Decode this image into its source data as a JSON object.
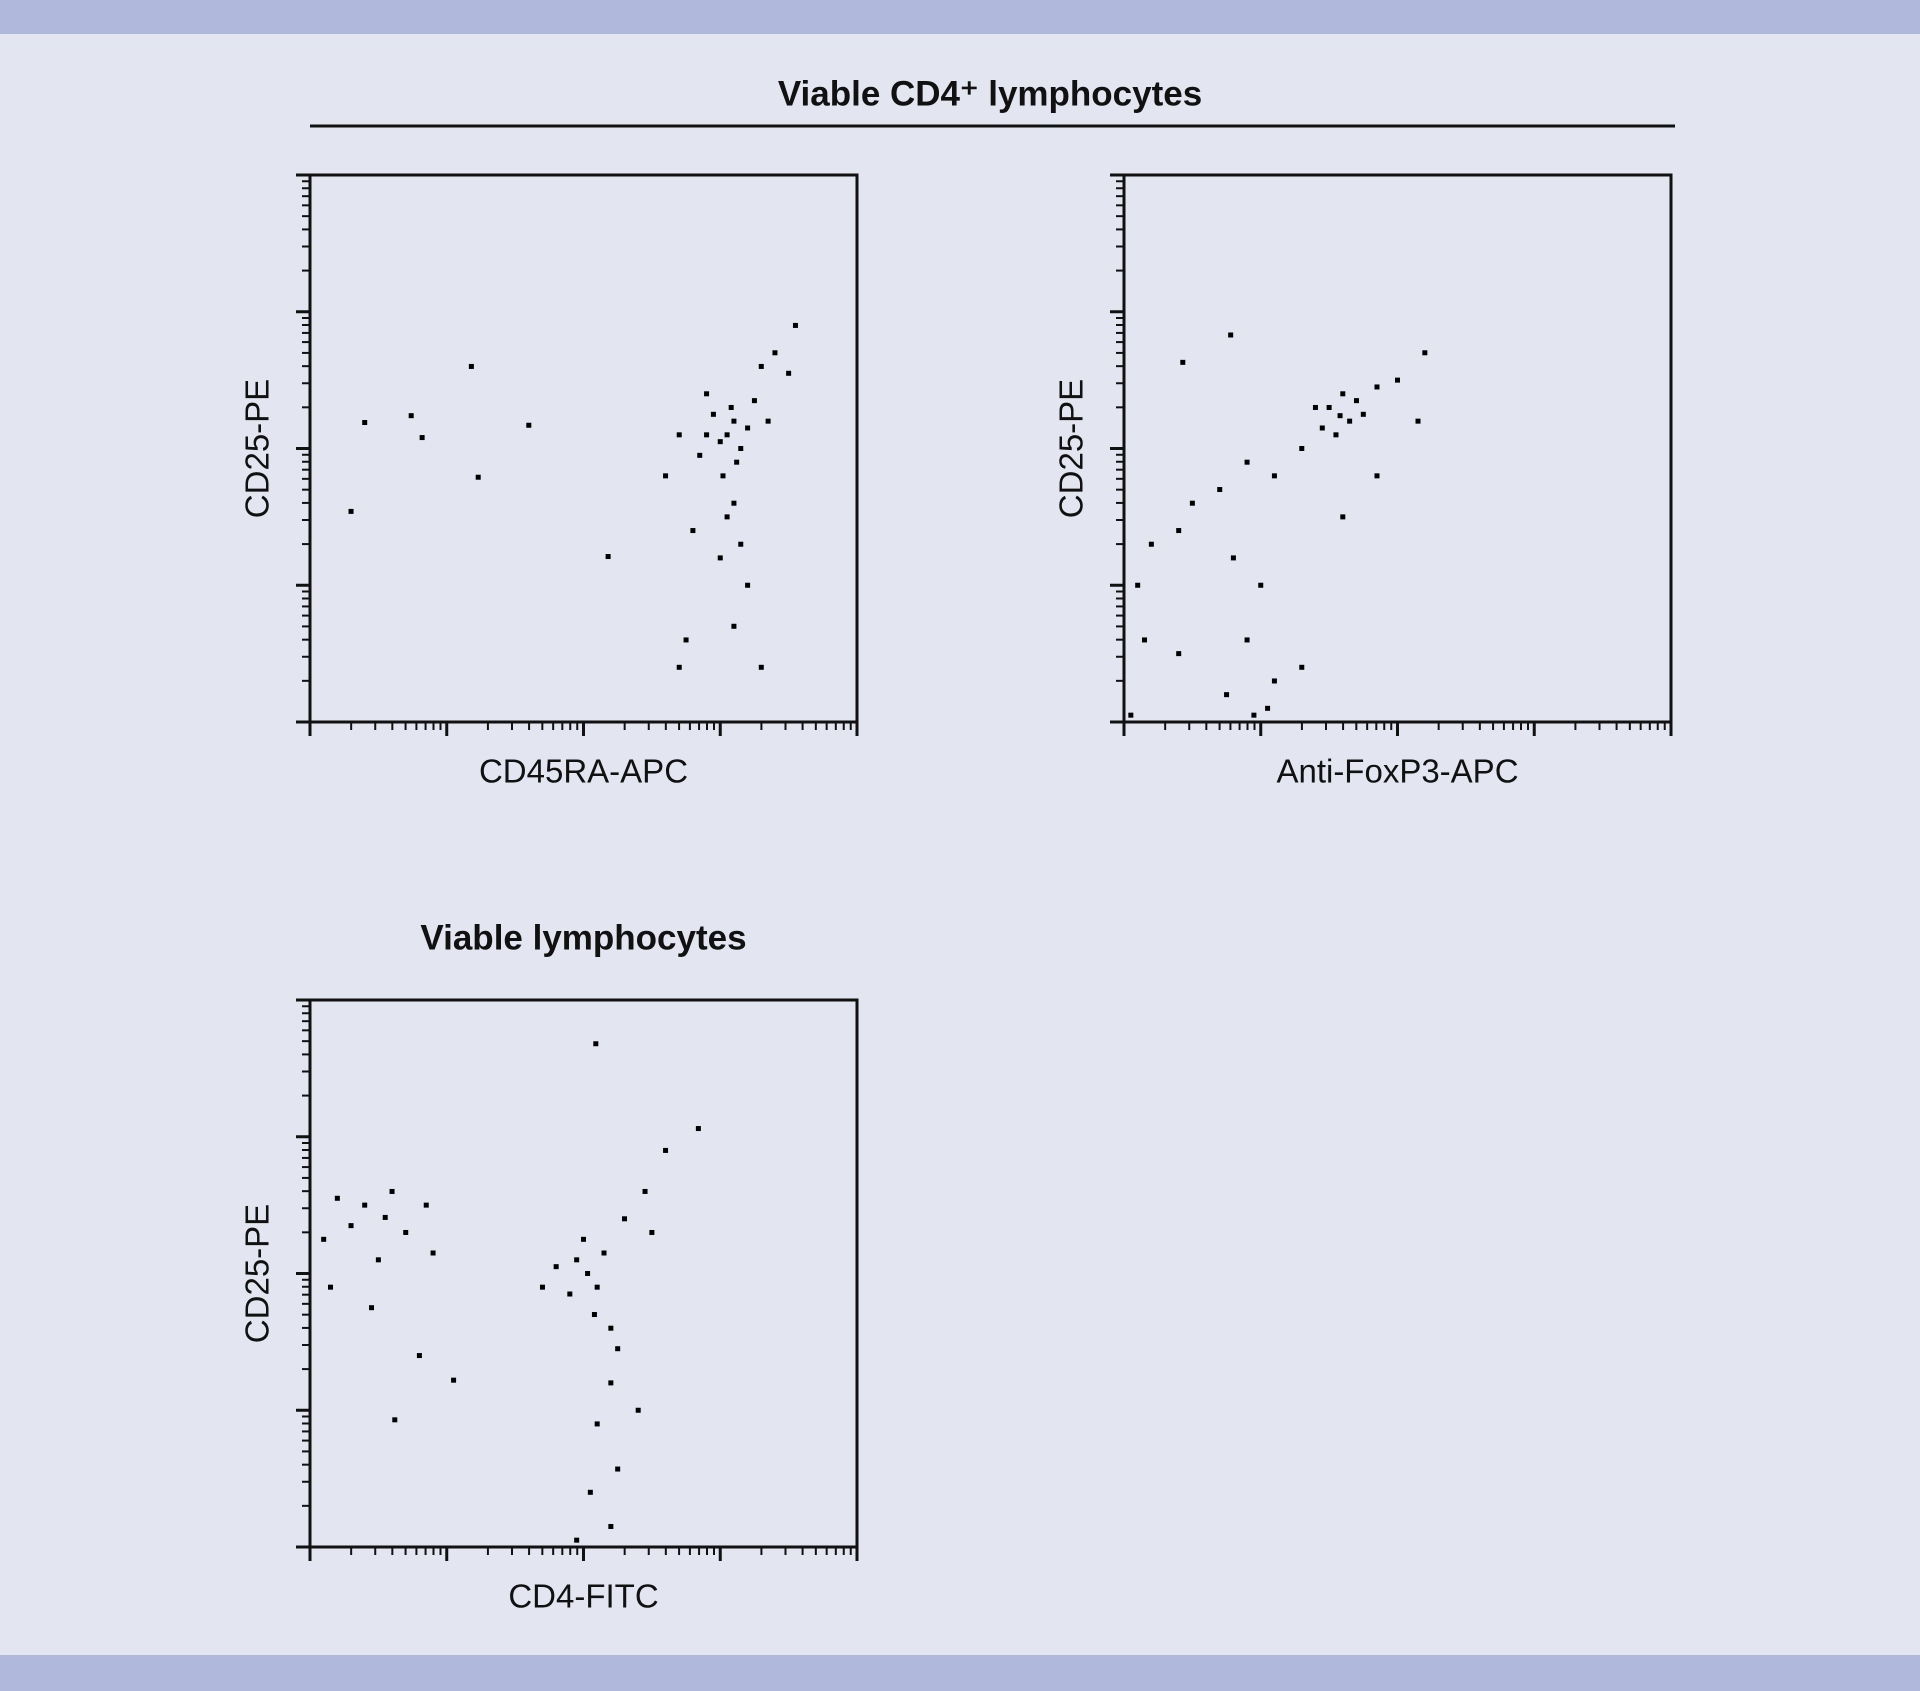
{
  "header": {
    "title": "Viable CD4⁺ lymphocytes"
  },
  "chart_data": [
    {
      "type": "scatter",
      "x_label": "CD45RA-APC",
      "y_label": "CD25-PE",
      "color": "#000000",
      "xlim": [
        0,
        4
      ],
      "ylim": [
        0,
        4
      ],
      "xticks": [
        0,
        1,
        2,
        3,
        4
      ],
      "yticks": [
        0,
        1,
        2,
        3,
        4
      ],
      "x": [
        3.05,
        3.1,
        3.0,
        3.15,
        2.95,
        3.08,
        3.2,
        2.9,
        3.12,
        3.02,
        3.1,
        3.05,
        2.85,
        3.25,
        3.3,
        3.4,
        3.55,
        3.5,
        2.7,
        2.6,
        2.8,
        3.0,
        3.15,
        2.75,
        3.1,
        3.3,
        2.7,
        3.2,
        2.9,
        3.35,
        1.18,
        0.4,
        0.74,
        0.82,
        1.23,
        0.3,
        1.6,
        2.18
      ],
      "y": [
        2.1,
        2.2,
        2.05,
        2.0,
        2.25,
        2.3,
        2.15,
        2.1,
        1.9,
        1.8,
        1.6,
        1.5,
        1.95,
        2.35,
        2.6,
        2.7,
        2.9,
        2.55,
        2.1,
        1.8,
        1.4,
        1.2,
        1.3,
        0.6,
        0.7,
        0.4,
        0.4,
        1.0,
        2.4,
        2.2,
        2.6,
        2.19,
        2.24,
        2.08,
        1.79,
        1.54,
        2.17,
        1.21
      ]
    },
    {
      "type": "scatter",
      "x_label": "Anti-FoxP3-APC",
      "y_label": "CD25-PE",
      "color": "#000000",
      "xlim": [
        0,
        4
      ],
      "ylim": [
        0,
        4
      ],
      "xticks": [
        0,
        1,
        2,
        3,
        4
      ],
      "yticks": [
        0,
        1,
        2,
        3,
        4
      ],
      "x": [
        1.58,
        1.5,
        1.65,
        1.7,
        1.45,
        1.6,
        1.75,
        1.4,
        1.55,
        1.85,
        2.2,
        2.0,
        1.3,
        1.1,
        0.9,
        0.7,
        0.5,
        0.2,
        0.1,
        0.4,
        0.8,
        1.0,
        0.9,
        1.1,
        0.75,
        0.95,
        1.05,
        0.4,
        0.15,
        0.78,
        0.43,
        1.6,
        1.85,
        1.3,
        0.05,
        2.15
      ],
      "y": [
        2.24,
        2.3,
        2.2,
        2.35,
        2.15,
        2.4,
        2.25,
        2.3,
        2.1,
        2.45,
        2.7,
        2.5,
        2.0,
        1.8,
        1.9,
        1.7,
        1.6,
        1.3,
        1.0,
        1.4,
        1.2,
        1.0,
        0.6,
        0.3,
        0.2,
        0.05,
        0.1,
        0.5,
        0.6,
        2.83,
        2.63,
        1.5,
        1.8,
        0.4,
        0.05,
        2.2
      ]
    },
    {
      "type": "scatter",
      "title": "Viable lymphocytes",
      "x_label": "CD4-FITC",
      "y_label": "CD25-PE",
      "color": "#000000",
      "xlim": [
        0,
        4
      ],
      "ylim": [
        0,
        4
      ],
      "xticks": [
        0,
        1,
        2,
        3,
        4
      ],
      "yticks": [
        0,
        1,
        2,
        3,
        4
      ],
      "x": [
        0.55,
        0.4,
        0.7,
        0.3,
        0.6,
        0.2,
        0.85,
        0.1,
        0.5,
        0.9,
        0.45,
        0.8,
        0.62,
        1.05,
        0.15,
        2.03,
        1.95,
        2.1,
        2.0,
        1.9,
        2.15,
        2.08,
        2.2,
        2.25,
        1.8,
        1.7,
        2.3,
        2.45,
        2.6,
        2.84,
        2.5,
        2.2,
        2.1,
        2.25,
        2.05,
        2.2,
        1.95,
        2.4,
        2.09
      ],
      "y": [
        2.41,
        2.5,
        2.3,
        2.35,
        2.6,
        2.55,
        2.5,
        2.25,
        2.1,
        2.15,
        1.75,
        1.4,
        0.93,
        1.22,
        1.9,
        2.0,
        2.1,
        1.9,
        2.25,
        1.85,
        2.15,
        1.7,
        1.6,
        1.45,
        2.05,
        1.9,
        2.4,
        2.6,
        2.9,
        3.06,
        2.3,
        1.2,
        0.9,
        0.57,
        0.4,
        0.15,
        0.05,
        1.0,
        3.68
      ]
    }
  ]
}
